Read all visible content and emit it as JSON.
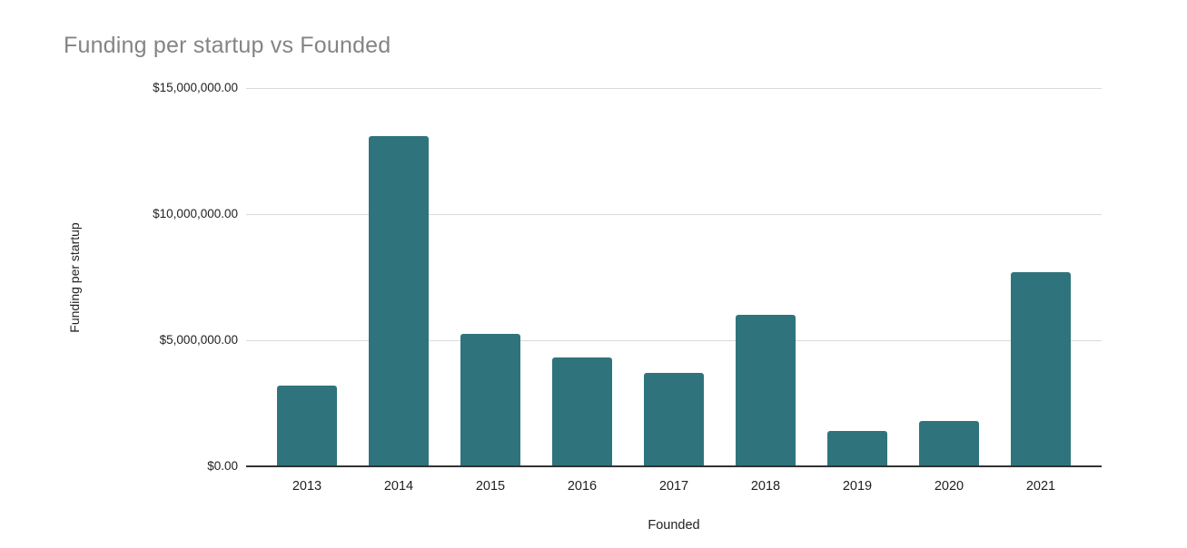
{
  "chart_data": {
    "type": "bar",
    "title": "Funding per startup vs Founded",
    "xlabel": "Founded",
    "ylabel": "Funding per startup",
    "categories": [
      "2013",
      "2014",
      "2015",
      "2016",
      "2017",
      "2018",
      "2019",
      "2020",
      "2021"
    ],
    "values": [
      3200000,
      13100000,
      5250000,
      4300000,
      3700000,
      6000000,
      1400000,
      1800000,
      7700000
    ],
    "ylim": [
      0,
      15000000
    ],
    "y_ticks": [
      {
        "value": 0,
        "label": "$0.00"
      },
      {
        "value": 5000000,
        "label": "$5,000,000.00"
      },
      {
        "value": 10000000,
        "label": "$10,000,000.00"
      },
      {
        "value": 15000000,
        "label": "$15,000,000.00"
      }
    ],
    "grid": true,
    "legend": "none",
    "colors": {
      "bar": "#2f747c",
      "title_text": "#848484",
      "tick_text": "#1f1f1f",
      "gridline": "#dadada",
      "axis_line": "#333333",
      "background": "#ffffff"
    }
  }
}
